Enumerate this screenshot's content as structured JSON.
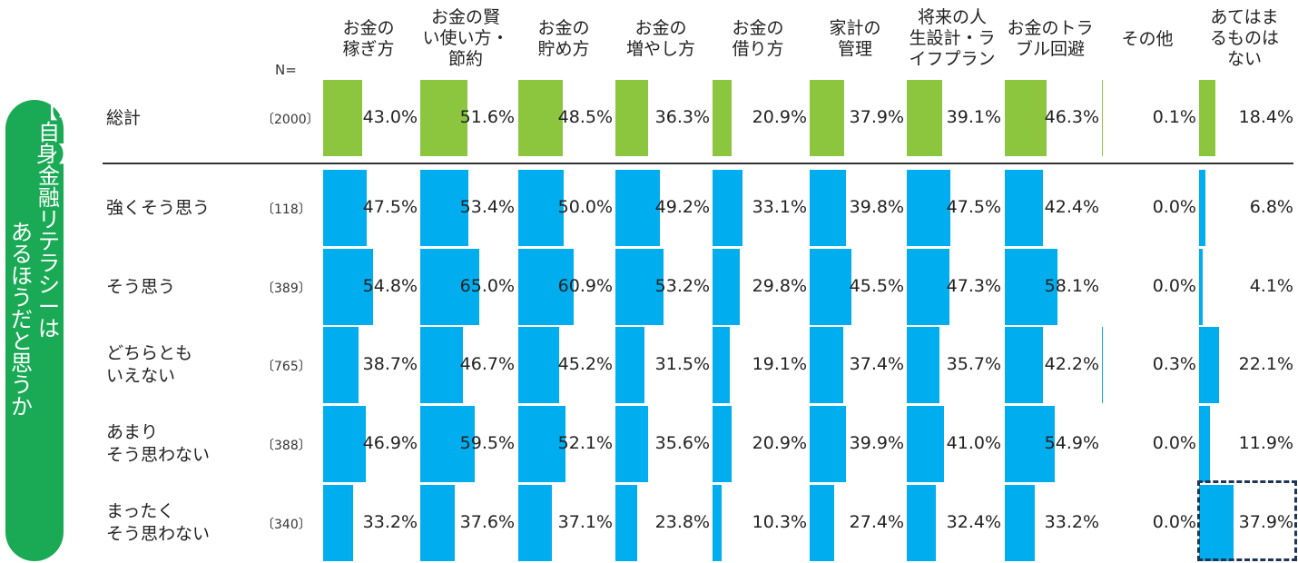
{
  "side_label": {
    "line1": "【親自身】金融リテラシーは",
    "line2": "あるほうだと思うか"
  },
  "n_header": "N=",
  "colors": {
    "total_bar": "#8cc63f",
    "segment_bar": "#00aeef",
    "side_pill": "#1aaa55",
    "highlight_border": "#1f3553"
  },
  "chart_data": {
    "type": "bar",
    "categories": [
      "お金の\n稼ぎ方",
      "お金の賢\nい使い方・\n節約",
      "お金の\n貯め方",
      "お金の\n増やし方",
      "お金の\n借り方",
      "家計の\n管理",
      "将来の人\n生設計・ラ\nイフプラン",
      "お金のトラ\nブル回避",
      "その他",
      "あてはま\nるものは\nない"
    ],
    "rows": [
      {
        "label": "総計",
        "n": "〔2000〕",
        "group": "total",
        "values": [
          43.0,
          51.6,
          48.5,
          36.3,
          20.9,
          37.9,
          39.1,
          46.3,
          0.1,
          18.4
        ]
      },
      {
        "label": "強くそう思う",
        "n": "〔118〕",
        "group": "segment",
        "values": [
          47.5,
          53.4,
          50.0,
          49.2,
          33.1,
          39.8,
          47.5,
          42.4,
          0.0,
          6.8
        ]
      },
      {
        "label": "そう思う",
        "n": "〔389〕",
        "group": "segment",
        "values": [
          54.8,
          65.0,
          60.9,
          53.2,
          29.8,
          45.5,
          47.3,
          58.1,
          0.0,
          4.1
        ]
      },
      {
        "label": "どちらとも\nいえない",
        "n": "〔765〕",
        "group": "segment",
        "values": [
          38.7,
          46.7,
          45.2,
          31.5,
          19.1,
          37.4,
          35.7,
          42.2,
          0.3,
          22.1
        ]
      },
      {
        "label": "あまり\nそう思わない",
        "n": "〔388〕",
        "group": "segment",
        "values": [
          46.9,
          59.5,
          52.1,
          35.6,
          20.9,
          39.9,
          41.0,
          54.9,
          0.0,
          11.9
        ]
      },
      {
        "label": "まったく\nそう思わない",
        "n": "〔340〕",
        "group": "segment",
        "values": [
          33.2,
          37.6,
          37.1,
          23.8,
          10.3,
          27.4,
          32.4,
          33.2,
          0.0,
          37.9
        ]
      }
    ],
    "value_format": "percent_1dp",
    "value_unit": "%",
    "highlight": {
      "row": 5,
      "col": 9
    }
  }
}
